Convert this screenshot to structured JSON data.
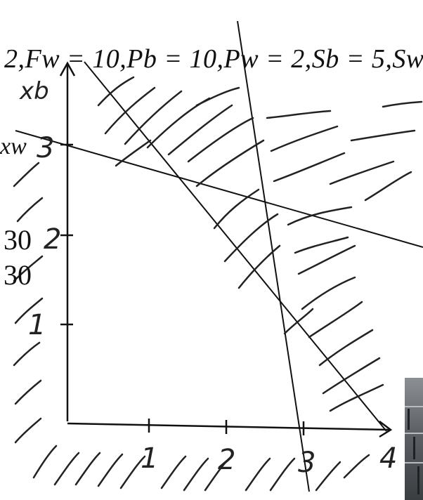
{
  "equation_text": "2,F_w = 10,P_b = 10,P_w = 2,S_b = 5,S_w =",
  "equation_display": "2,Fw = 10,Pb = 10,Pw = 2,Sb = 5,Sw =",
  "axes": {
    "y_label": "x_b",
    "y_label_display": "xb",
    "x_label_left": "x_w",
    "x_label_left_display": "xw"
  },
  "y_ticks": [
    "1",
    "2",
    "3"
  ],
  "x_ticks": [
    "1",
    "2",
    "3",
    "4"
  ],
  "stray_labels": [
    "30",
    "30"
  ],
  "colors": {
    "ink": "#111111",
    "hatch": "#222222",
    "thumb_dark": "#3a3d40"
  },
  "hatch_note": "hand-drawn hatching marks infeasible regions outside constraints"
}
